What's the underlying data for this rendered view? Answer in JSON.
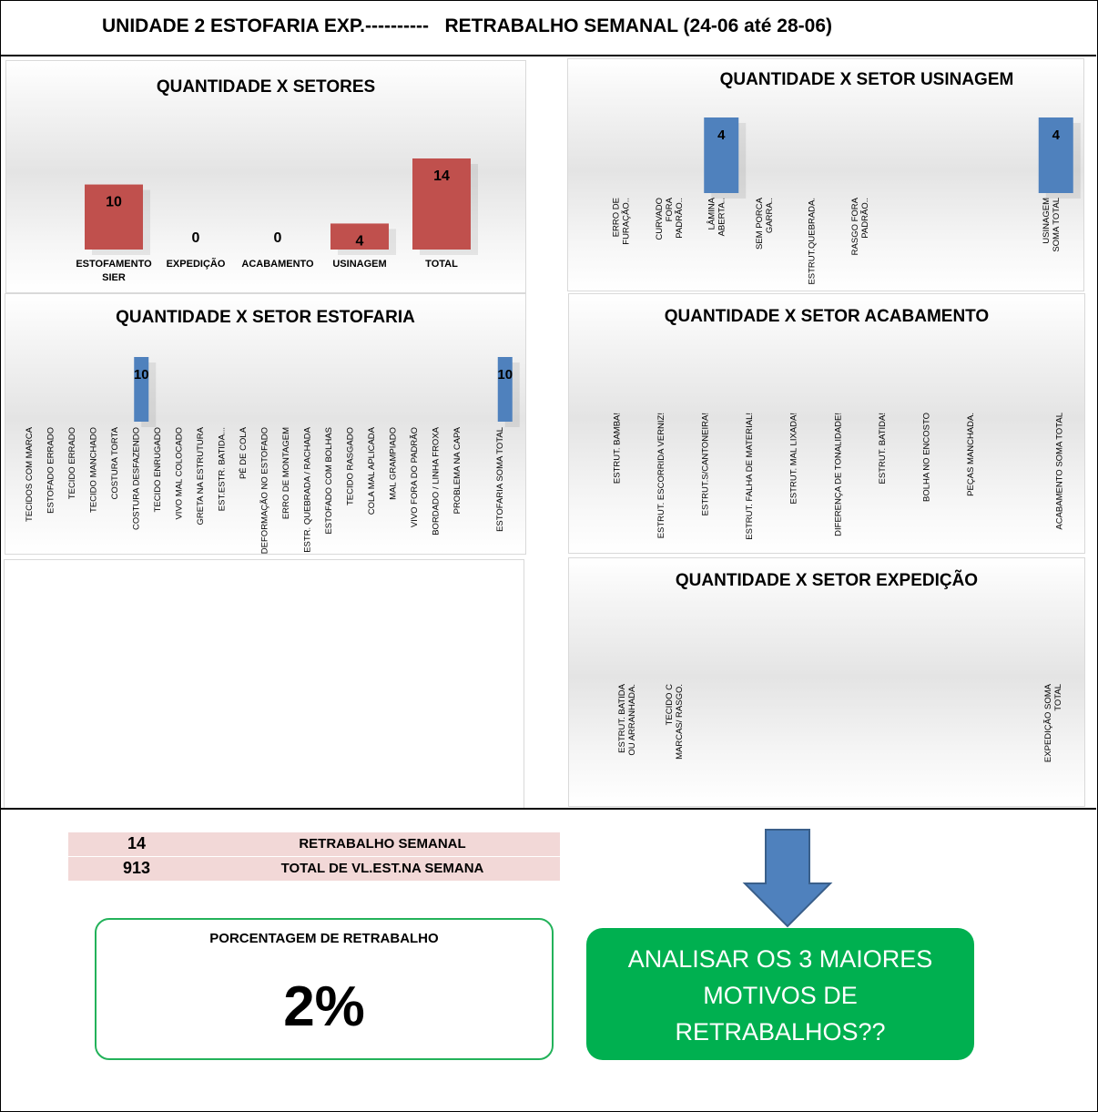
{
  "header": {
    "title": "UNIDADE 2 ESTOFARIA EXP.----------   RETRABALHO SEMANAL (24-06 até 28-06)"
  },
  "colors": {
    "red_bar": "#c0504d",
    "blue_bar": "#4f81bd",
    "green_box": "#00b050",
    "summary_bg": "#f2d8d7",
    "arrow": "#4f81bd"
  },
  "chart_data": [
    {
      "type": "bar",
      "title": "QUANTIDADE X SETORES",
      "categories": [
        "ESTOFAMENTO SIER",
        "EXPEDIÇÃO",
        "ACABAMENTO",
        "USINAGEM",
        "TOTAL"
      ],
      "values": [
        10,
        0,
        0,
        4,
        14
      ],
      "ylim": [
        0,
        14
      ],
      "grid": false,
      "legend": "none",
      "data_labels": true,
      "color": "#c0504d"
    },
    {
      "type": "bar",
      "title": "QUANTIDADE X SETOR USINAGEM",
      "categories": [
        "ERRO DE FURAÇÃO..",
        "CURVADO FORA PADRÃO..",
        "LÂMINA ABERTA..",
        "SEM PORCA GARRA..",
        "ESTRUT.QUEBRADA.",
        "RASGO FORA PADRÃO..",
        "",
        "",
        "",
        "USINAGEM SOMA TOTAL"
      ],
      "values": [
        null,
        null,
        4,
        null,
        null,
        null,
        null,
        null,
        null,
        4
      ],
      "ylim": [
        0,
        4
      ],
      "grid": false,
      "legend": "none",
      "data_labels": true,
      "color": "#4f81bd"
    },
    {
      "type": "bar",
      "title": "QUANTIDADE X SETOR ESTOFARIA",
      "categories": [
        "TECIDOS COM MARCA",
        "ESTOFADO ERRADO",
        "TECIDO ERRADO",
        "TECIDO MANCHADO",
        "COSTURA TORTA",
        "COSTURA DESFAZENDO",
        "TECIDO ENRUGADO",
        "VIVO MAL COLOCADO",
        "GRETA NA ESTRUTURA",
        "EST.ESTR. BATIDA...",
        "PÉ DE COLA",
        "DEFORMAÇÃO NO ESTOFADO",
        "ERRO DE MONTAGEM",
        "ESTR. QUEBRADA / RACHADA",
        "ESTOFADO COM BOLHAS",
        "TECIDO RASGADO",
        "COLA MAL APLICADA",
        "MAL GRAMPIADO",
        "VIVO FORA DO PADRÃO",
        "BORDADO / LINHA FROXA",
        "PROBLEMA NA CAPA",
        "",
        "ESTOFARIA SOMA TOTAL"
      ],
      "values": [
        null,
        null,
        null,
        null,
        null,
        10,
        null,
        null,
        null,
        null,
        null,
        null,
        null,
        null,
        null,
        null,
        null,
        null,
        null,
        null,
        null,
        null,
        10
      ],
      "ylim": [
        0,
        10
      ],
      "grid": false,
      "legend": "none",
      "data_labels": true,
      "color": "#4f81bd"
    },
    {
      "type": "bar",
      "title": "QUANTIDADE X SETOR ACABAMENTO",
      "categories": [
        "ESTRUT. BAMBA!",
        "ESTRUT. ESCORRIDA VERNIZ!",
        "ESTRUT.S/CANTONEIRA!",
        "ESTRUT. FALHA DE MATERIAL!",
        "ESTRUT. MAL LIXADA!",
        "DIFERENÇA DE TONALIDADE!",
        "ESTRUT. BATIDA!",
        "BOLHA NO ENCOSTO",
        "PEÇAS MANCHADA.",
        "",
        "ACABAMENTO SOMA TOTAL"
      ],
      "values": [
        null,
        null,
        null,
        null,
        null,
        null,
        null,
        null,
        null,
        null,
        null
      ],
      "grid": false,
      "legend": "none",
      "color": "#4f81bd"
    },
    {
      "type": "bar",
      "title": "QUANTIDADE X SETOR EXPEDIÇÃO",
      "categories": [
        "ESTRUT. BATIDA OU ARRANHADA.",
        "TECIDO C MARCAS/ RASGO.",
        "",
        "",
        "",
        "",
        "",
        "",
        "",
        "EXPEDIÇÃO SOMA TOTAL"
      ],
      "values": [
        null,
        null,
        null,
        null,
        null,
        null,
        null,
        null,
        null,
        null
      ],
      "grid": false,
      "legend": "none",
      "color": "#4f81bd"
    }
  ],
  "summary": {
    "rows": [
      {
        "value": "14",
        "label": "RETRABALHO SEMANAL"
      },
      {
        "value": "913",
        "label": "TOTAL DE VL.EST.NA SEMANA"
      }
    ],
    "percent_caption": "PORCENTAGEM DE RETRABALHO",
    "percent_value": "2%",
    "action_text": "ANALISAR OS 3 MAIORES MOTIVOS DE RETRABALHOS??"
  }
}
